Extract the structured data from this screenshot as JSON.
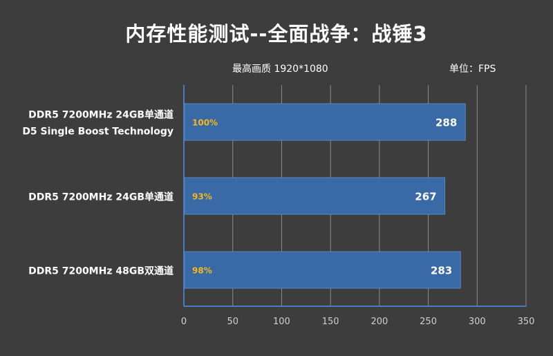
{
  "chart_data": {
    "type": "bar",
    "orientation": "horizontal",
    "title": "内存性能测试--全面战争：战锤3",
    "subtitle": "最高画质 1920*1080",
    "unit_label": "单位：FPS",
    "categories": [
      [
        "DDR5 7200MHz 24GB单通道",
        "D5 Single Boost Technology"
      ],
      [
        "DDR5 7200MHz 24GB单通道"
      ],
      [
        "DDR5 7200MHz 48GB双通道"
      ]
    ],
    "values": [
      288,
      267,
      283
    ],
    "percent_labels": [
      "100%",
      "93%",
      "98%"
    ],
    "xlim": [
      0,
      350
    ],
    "xticks": [
      0,
      50,
      100,
      150,
      200,
      250,
      300,
      350
    ],
    "grid": true,
    "colors": {
      "background": "#3d3d3d",
      "bar": "#3a6aa6",
      "bar_edge": "#5a86bf",
      "value_label": "#ffffff",
      "percent_label": "#f5b81c",
      "grid": "#8c8c8c",
      "axis": "#4b7cc2",
      "text": "#ffffff"
    }
  }
}
